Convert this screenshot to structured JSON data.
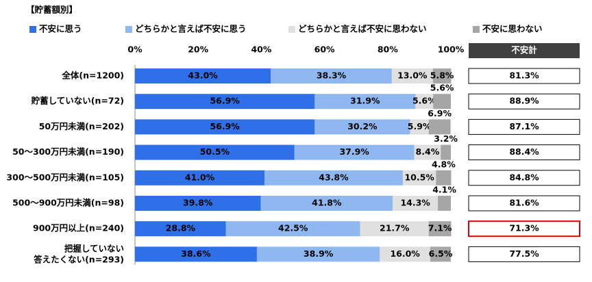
{
  "chart_data": {
    "type": "stacked_bar_horizontal",
    "subtitle": "【貯蓄額別】",
    "categories": [
      "全体(n=1200)",
      "貯蓄していない(n=72)",
      "50万円未満(n=202)",
      "50～300万円未満(n=190)",
      "300～500万円未満(n=105)",
      "500～900万円未満(n=98)",
      "900万円以上(n=240)",
      "把握していない\n答えたくない(n=293)"
    ],
    "series": [
      {
        "name": "不安に思う",
        "color": "#2f6fe8",
        "values": [
          43,
          56.9,
          56.9,
          50.5,
          41,
          39.8,
          28.8,
          38.6
        ],
        "value_labels": [
          "43.0%",
          "56.9%",
          "56.9%",
          "50.5%",
          "41.0%",
          "39.8%",
          "28.8%",
          "38.6%"
        ]
      },
      {
        "name": "どちらかと言えば不安に思う",
        "color": "#8fb8f0",
        "values": [
          38.3,
          31.9,
          30.2,
          37.9,
          43.8,
          41.8,
          42.5,
          38.9
        ],
        "value_labels": [
          "38.3%",
          "31.9%",
          "30.2%",
          "37.9%",
          "43.8%",
          "41.8%",
          "42.5%",
          "38.9%"
        ]
      },
      {
        "name": "どちらかと言えば不安に思わない",
        "color": "#e0e0e0",
        "values": [
          13,
          5.6,
          5.9,
          8.4,
          10.5,
          14.3,
          21.7,
          16
        ],
        "value_labels": [
          "13.0%",
          "5.6%",
          "5.9%",
          "8.4%",
          "10.5%",
          "14.3%",
          "21.7%",
          "16.0%"
        ]
      },
      {
        "name": "不安に思わない",
        "color": "#a6a6a6",
        "values": [
          5.8,
          5.6,
          6.9,
          3.2,
          4.8,
          4.1,
          7.1,
          6.5
        ],
        "value_labels": [
          "5.8%",
          "5.6%",
          "6.9%",
          "3.2%",
          "4.8%",
          "4.1%",
          "7.1%",
          "6.5%"
        ]
      }
    ],
    "xlim": [
      0,
      100
    ],
    "xticks": [
      {
        "value": 0,
        "label": "0%"
      },
      {
        "value": 20,
        "label": "20%"
      },
      {
        "value": 40,
        "label": "40%"
      },
      {
        "value": 60,
        "label": "60%"
      },
      {
        "value": 80,
        "label": "80%"
      },
      {
        "value": 100,
        "label": "100%"
      }
    ],
    "totals": {
      "title": "不安計",
      "values": [
        81.3,
        88.9,
        87.1,
        88.4,
        84.8,
        81.6,
        71.3,
        77.5
      ],
      "value_labels": [
        "81.3%",
        "88.9%",
        "87.1%",
        "88.4%",
        "84.8%",
        "81.6%",
        "71.3%",
        "77.5%"
      ],
      "highlight_index": 6,
      "highlight_color": "#e00000"
    }
  }
}
